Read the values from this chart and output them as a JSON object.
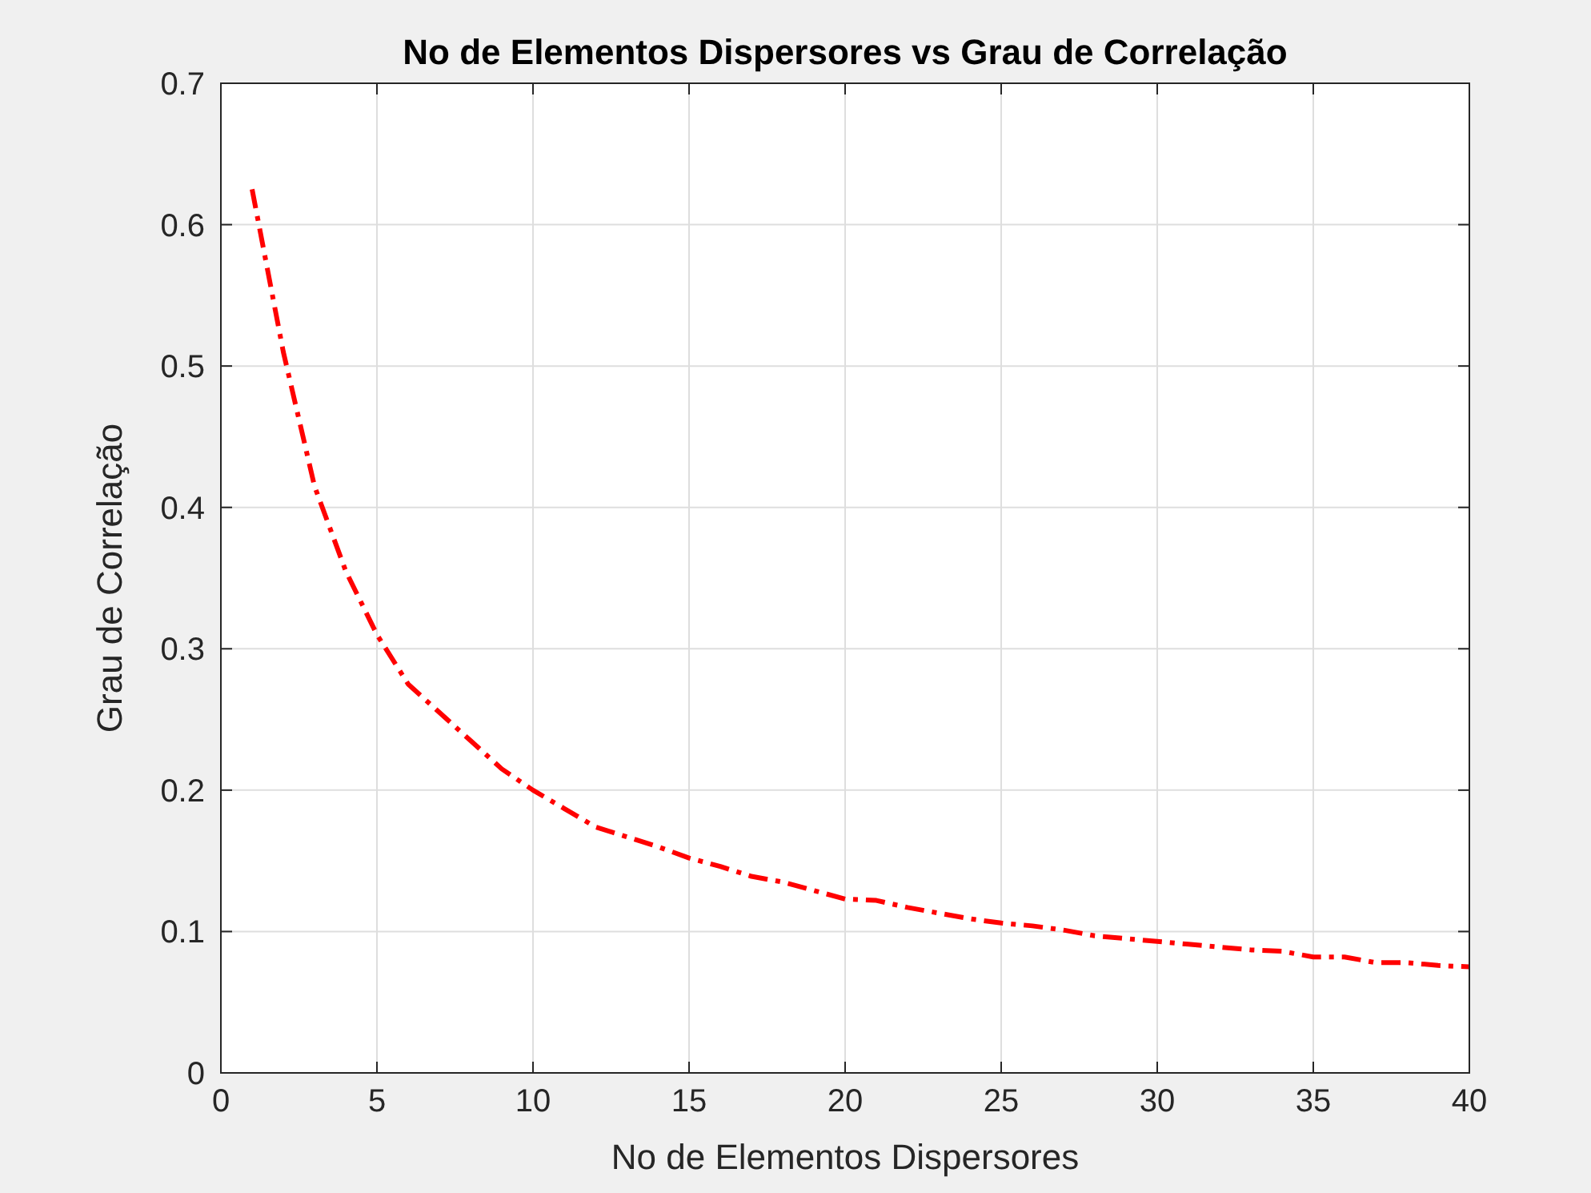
{
  "chart_data": {
    "type": "line",
    "title": "No de Elementos Dispersores vs Grau de Correlação",
    "xlabel": "No de Elementos Dispersores",
    "ylabel": "Grau de Correlação",
    "x": [
      1,
      2,
      3,
      4,
      5,
      6,
      7,
      8,
      9,
      10,
      11,
      12,
      13,
      14,
      15,
      16,
      17,
      18,
      19,
      20,
      21,
      22,
      23,
      24,
      25,
      26,
      27,
      28,
      29,
      30,
      31,
      32,
      33,
      34,
      35,
      36,
      37,
      38,
      39,
      40
    ],
    "series": [
      {
        "color": "#ff0000",
        "values": [
          0.625,
          0.51,
          0.415,
          0.355,
          0.31,
          0.275,
          0.255,
          0.235,
          0.215,
          0.2,
          0.187,
          0.174,
          0.167,
          0.16,
          0.152,
          0.146,
          0.139,
          0.135,
          0.129,
          0.123,
          0.122,
          0.117,
          0.113,
          0.109,
          0.106,
          0.104,
          0.101,
          0.097,
          0.095,
          0.093,
          0.091,
          0.089,
          0.087,
          0.086,
          0.082,
          0.082,
          0.078,
          0.078,
          0.076,
          0.075
        ]
      }
    ],
    "xlim": [
      0,
      40
    ],
    "xticks": [
      0,
      5,
      10,
      15,
      20,
      25,
      30,
      35,
      40
    ],
    "ylim": [
      0,
      0.7
    ],
    "yticks": [
      0,
      0.1,
      0.2,
      0.3,
      0.4,
      0.5,
      0.6,
      0.7
    ],
    "grid": true,
    "line_style": "dashed",
    "marker": "none"
  }
}
